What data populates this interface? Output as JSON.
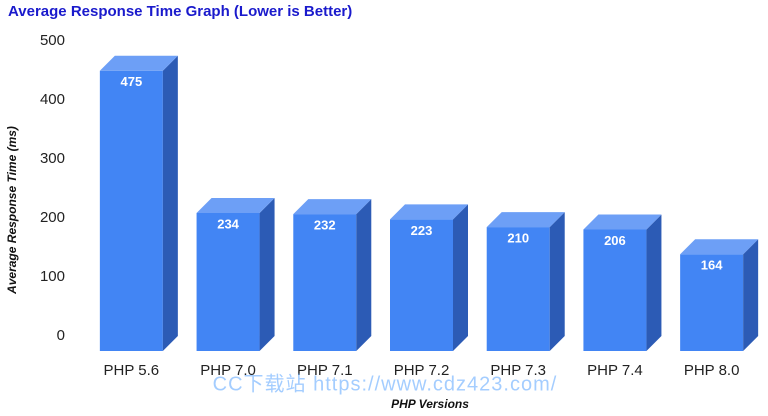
{
  "chart_data": {
    "type": "bar3d",
    "title": "Average Response Time Graph (Lower is Better)",
    "x_label": "PHP Versions",
    "y_label": "Average Response Time (ms)",
    "categories": [
      "PHP 5.6",
      "PHP 7.0",
      "PHP 7.1",
      "PHP 7.2",
      "PHP 7.3",
      "PHP 7.4",
      "PHP 8.0"
    ],
    "values": [
      475,
      234,
      232,
      223,
      210,
      206,
      164
    ],
    "color": "#4285f4",
    "ylim": [
      0,
      500
    ],
    "yticks": [
      0,
      100,
      200,
      300,
      400,
      500
    ],
    "grid": false,
    "watermark": "CC下载站  https://www.cdz423.com/"
  }
}
